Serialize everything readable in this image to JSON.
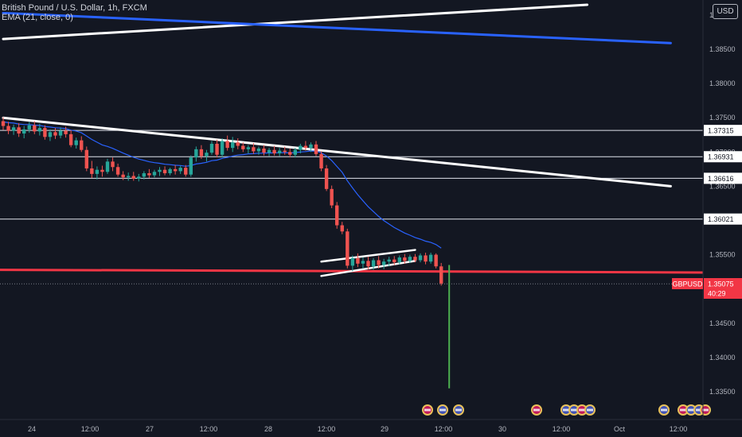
{
  "legend": {
    "symbol": "British Pound / U.S. Dollar, 1h, FXCM",
    "indicator": "EMA (21, close, 0)"
  },
  "currency_button": "USD",
  "price_tag": {
    "symbol": "GBPUSD",
    "price": "1.35075",
    "countdown": "40:29"
  },
  "colors": {
    "background": "#131722",
    "up": "#26a69a",
    "down": "#ef5350",
    "ema": "#2962ff",
    "support": "#f23645",
    "trendline_blue": "#2962ff",
    "trendline_white": "#ffffff",
    "projection": "#4caf50"
  },
  "chart_data": {
    "type": "candlestick",
    "x_ticks": [
      "24",
      "12:00",
      "27",
      "12:00",
      "28",
      "12:00",
      "29",
      "12:00",
      "30",
      "12:00",
      "Oct",
      "12:00"
    ],
    "y_ticks": [
      "1.39000",
      "1.38500",
      "1.38000",
      "1.37500",
      "1.37000",
      "1.36500",
      "1.36000",
      "1.35500",
      "1.35000",
      "1.34500",
      "1.34000",
      "1.33500"
    ],
    "ylim": [
      1.3325,
      1.3915
    ],
    "horizontal_levels": [
      1.37315,
      1.36931,
      1.36616,
      1.36021
    ],
    "horizontal_level_labels": [
      "1.37315",
      "1.36931",
      "1.36616",
      "1.36021"
    ],
    "support_level": 1.3524,
    "last_price": 1.35075,
    "projection_target": 1.3355,
    "trendlines": [
      {
        "color": "white",
        "from": [
          0,
          1.3865
        ],
        "to": [
          112,
          1.3915
        ]
      },
      {
        "color": "blue",
        "from": [
          0,
          1.3903
        ],
        "to": [
          128,
          1.3859
        ]
      },
      {
        "color": "white",
        "from": [
          0,
          1.375
        ],
        "to": [
          128,
          1.365
        ]
      },
      {
        "color": "white",
        "from": [
          61,
          1.354
        ],
        "to": [
          79,
          1.3557
        ]
      },
      {
        "color": "white",
        "from": [
          61,
          1.3519
        ],
        "to": [
          79,
          1.3541
        ]
      }
    ],
    "ema_period": 21,
    "event_markers_count": 16,
    "candles": [
      [
        1.3745,
        1.3751,
        1.3732,
        1.3738
      ],
      [
        1.3738,
        1.3744,
        1.3726,
        1.3731
      ],
      [
        1.3731,
        1.374,
        1.3725,
        1.3736
      ],
      [
        1.3736,
        1.3742,
        1.3722,
        1.3727
      ],
      [
        1.3727,
        1.3738,
        1.372,
        1.3733
      ],
      [
        1.3733,
        1.3744,
        1.3728,
        1.3739
      ],
      [
        1.3739,
        1.3745,
        1.3726,
        1.373
      ],
      [
        1.373,
        1.3741,
        1.3724,
        1.3735
      ],
      [
        1.3735,
        1.3739,
        1.3718,
        1.3722
      ],
      [
        1.3722,
        1.3733,
        1.3716,
        1.3729
      ],
      [
        1.3729,
        1.3735,
        1.3719,
        1.3724
      ],
      [
        1.3724,
        1.3736,
        1.372,
        1.3731
      ],
      [
        1.3731,
        1.3737,
        1.3721,
        1.3726
      ],
      [
        1.3726,
        1.3732,
        1.3707,
        1.371
      ],
      [
        1.371,
        1.3721,
        1.3705,
        1.3717
      ],
      [
        1.3717,
        1.3723,
        1.37,
        1.3703
      ],
      [
        1.3703,
        1.3708,
        1.3672,
        1.3676
      ],
      [
        1.3676,
        1.3687,
        1.3662,
        1.3668
      ],
      [
        1.3668,
        1.3679,
        1.366,
        1.3674
      ],
      [
        1.3674,
        1.368,
        1.3664,
        1.3671
      ],
      [
        1.3671,
        1.369,
        1.3668,
        1.3686
      ],
      [
        1.3686,
        1.3692,
        1.3672,
        1.3678
      ],
      [
        1.3678,
        1.3683,
        1.3664,
        1.3667
      ],
      [
        1.3667,
        1.3672,
        1.3659,
        1.3663
      ],
      [
        1.3663,
        1.367,
        1.3658,
        1.3665
      ],
      [
        1.3665,
        1.3671,
        1.3658,
        1.3661
      ],
      [
        1.3661,
        1.3668,
        1.3657,
        1.3664
      ],
      [
        1.3664,
        1.3672,
        1.366,
        1.3669
      ],
      [
        1.3669,
        1.3675,
        1.3662,
        1.3666
      ],
      [
        1.3666,
        1.3674,
        1.3663,
        1.3671
      ],
      [
        1.3671,
        1.3678,
        1.3665,
        1.3674
      ],
      [
        1.3674,
        1.3679,
        1.3666,
        1.3669
      ],
      [
        1.3669,
        1.3677,
        1.3666,
        1.3675
      ],
      [
        1.3675,
        1.3681,
        1.3667,
        1.3672
      ],
      [
        1.3672,
        1.368,
        1.3668,
        1.3677
      ],
      [
        1.3677,
        1.3681,
        1.3664,
        1.3667
      ],
      [
        1.3667,
        1.3695,
        1.3664,
        1.3692
      ],
      [
        1.3692,
        1.3708,
        1.3686,
        1.3704
      ],
      [
        1.3704,
        1.371,
        1.369,
        1.3694
      ],
      [
        1.3694,
        1.3703,
        1.3686,
        1.3699
      ],
      [
        1.3699,
        1.3716,
        1.3696,
        1.3712
      ],
      [
        1.3712,
        1.3718,
        1.3692,
        1.3696
      ],
      [
        1.3696,
        1.372,
        1.3692,
        1.3716
      ],
      [
        1.3716,
        1.3724,
        1.3702,
        1.3706
      ],
      [
        1.3706,
        1.3722,
        1.37,
        1.3714
      ],
      [
        1.3714,
        1.372,
        1.3704,
        1.3709
      ],
      [
        1.3709,
        1.3714,
        1.37,
        1.3704
      ],
      [
        1.3704,
        1.371,
        1.3698,
        1.3707
      ],
      [
        1.3707,
        1.3713,
        1.3697,
        1.3701
      ],
      [
        1.3701,
        1.3708,
        1.3696,
        1.3705
      ],
      [
        1.3705,
        1.371,
        1.3695,
        1.3699
      ],
      [
        1.3699,
        1.3706,
        1.3694,
        1.3703
      ],
      [
        1.3703,
        1.3709,
        1.3695,
        1.3698
      ],
      [
        1.3698,
        1.3706,
        1.3694,
        1.3702
      ],
      [
        1.3702,
        1.3708,
        1.3696,
        1.37
      ],
      [
        1.37,
        1.3705,
        1.3692,
        1.3696
      ],
      [
        1.3696,
        1.3706,
        1.3692,
        1.3703
      ],
      [
        1.3703,
        1.3712,
        1.3698,
        1.3709
      ],
      [
        1.3709,
        1.3716,
        1.3702,
        1.3706
      ],
      [
        1.3706,
        1.3714,
        1.37,
        1.3711
      ],
      [
        1.3711,
        1.3716,
        1.3694,
        1.3697
      ],
      [
        1.3697,
        1.3701,
        1.3672,
        1.3676
      ],
      [
        1.3676,
        1.3681,
        1.3643,
        1.3646
      ],
      [
        1.3646,
        1.3651,
        1.3618,
        1.3622
      ],
      [
        1.3622,
        1.3627,
        1.3588,
        1.3593
      ],
      [
        1.3593,
        1.3598,
        1.358,
        1.3584
      ],
      [
        1.3584,
        1.3588,
        1.353,
        1.3534
      ],
      [
        1.3534,
        1.3549,
        1.3526,
        1.3545
      ],
      [
        1.3545,
        1.3552,
        1.3532,
        1.3537
      ],
      [
        1.3537,
        1.3546,
        1.353,
        1.3541
      ],
      [
        1.3541,
        1.3547,
        1.3529,
        1.3533
      ],
      [
        1.3533,
        1.3545,
        1.3528,
        1.3542
      ],
      [
        1.3542,
        1.3548,
        1.353,
        1.3535
      ],
      [
        1.3535,
        1.3544,
        1.3529,
        1.354
      ],
      [
        1.354,
        1.3547,
        1.3533,
        1.3543
      ],
      [
        1.3543,
        1.3548,
        1.3535,
        1.3539
      ],
      [
        1.3539,
        1.3549,
        1.3536,
        1.3546
      ],
      [
        1.3546,
        1.3551,
        1.3537,
        1.3541
      ],
      [
        1.3541,
        1.355,
        1.3538,
        1.3547
      ],
      [
        1.3547,
        1.3551,
        1.3539,
        1.3542
      ],
      [
        1.3542,
        1.3552,
        1.3539,
        1.3549
      ],
      [
        1.3549,
        1.3553,
        1.3536,
        1.354
      ],
      [
        1.354,
        1.3553,
        1.3537,
        1.355
      ],
      [
        1.355,
        1.3552,
        1.353,
        1.3533
      ],
      [
        1.3533,
        1.3538,
        1.3505,
        1.3508
      ]
    ]
  }
}
